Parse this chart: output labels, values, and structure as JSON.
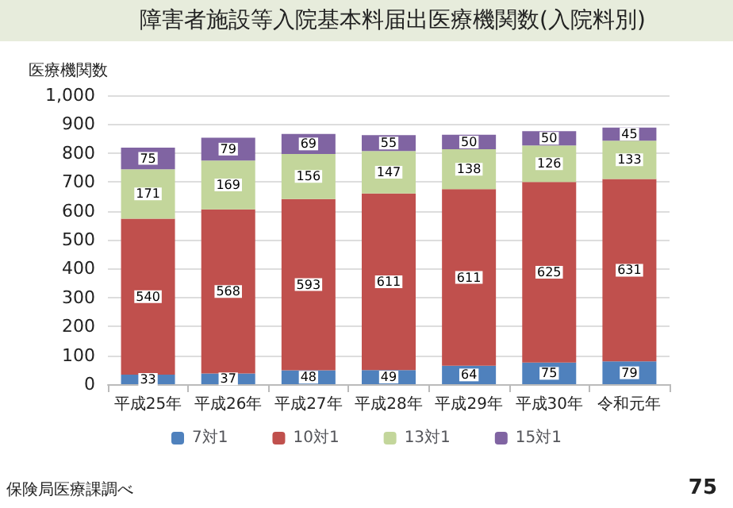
{
  "chart_data": {
    "type": "bar",
    "title": "障害者施設等入院基本料届出医療機関数(入院料別)",
    "ylabel": "医療機関数",
    "categories": [
      "平成25年",
      "平成26年",
      "平成27年",
      "平成28年",
      "平成29年",
      "平成30年",
      "令和元年"
    ],
    "stacked": true,
    "data_labels": true,
    "grid": "y",
    "legend": "bottom",
    "ylim": [
      0,
      1000
    ],
    "yticks": [
      0,
      100,
      200,
      300,
      400,
      500,
      600,
      700,
      800,
      900,
      {
        "value": 1000,
        "label": "1,000"
      }
    ],
    "series": [
      {
        "name": "7対1",
        "color": "#4f81bd",
        "values": [
          33,
          37,
          48,
          49,
          64,
          75,
          79
        ]
      },
      {
        "name": "10対1",
        "color": "#c0504d",
        "values": [
          540,
          568,
          593,
          611,
          611,
          625,
          631
        ]
      },
      {
        "name": "13対1",
        "color": "#c3d69b",
        "values": [
          171,
          169,
          156,
          147,
          138,
          126,
          133
        ]
      },
      {
        "name": "15対1",
        "color": "#8064a2",
        "values": [
          75,
          79,
          69,
          55,
          50,
          50,
          45
        ]
      }
    ],
    "annotations": [
      "保険局医療課調べ",
      "75"
    ]
  }
}
